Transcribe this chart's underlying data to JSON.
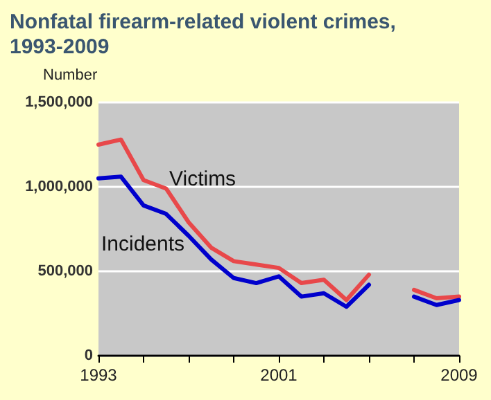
{
  "chart_data": {
    "type": "line",
    "title": "Nonfatal firearm-related violent crimes,\n1993-2009",
    "ylabel": "Number",
    "x": [
      1993,
      1994,
      1995,
      1996,
      1997,
      1998,
      1999,
      2000,
      2001,
      2002,
      2003,
      2004,
      2005,
      2006,
      2007,
      2008,
      2009
    ],
    "series": [
      {
        "name": "Victims",
        "color": "#e8484a",
        "values": [
          1250000,
          1280000,
          1040000,
          990000,
          790000,
          640000,
          560000,
          540000,
          520000,
          430000,
          450000,
          330000,
          480000,
          null,
          390000,
          340000,
          350000
        ]
      },
      {
        "name": "Incidents",
        "color": "#0000cc",
        "values": [
          1050000,
          1060000,
          890000,
          840000,
          710000,
          570000,
          460000,
          430000,
          470000,
          350000,
          370000,
          290000,
          420000,
          null,
          350000,
          300000,
          330000
        ]
      }
    ],
    "xlim": [
      1993,
      2009
    ],
    "xticks": [
      1993,
      {
        "value": 1995,
        "label": null
      },
      {
        "value": 1997,
        "label": null
      },
      {
        "value": 1999,
        "label": null
      },
      2001,
      {
        "value": 2003,
        "label": null
      },
      {
        "value": 2005,
        "label": null
      },
      {
        "value": 2007,
        "label": null
      },
      2009
    ],
    "ylim": [
      0,
      1500000
    ],
    "yticks": [
      0,
      {
        "value": 500000,
        "label": "500,000"
      },
      {
        "value": 1000000,
        "label": "1,000,000"
      },
      {
        "value": 1500000,
        "label": "1,500,000"
      }
    ],
    "grid": "y",
    "legend": false,
    "marker": "none",
    "line_style": "solid"
  }
}
